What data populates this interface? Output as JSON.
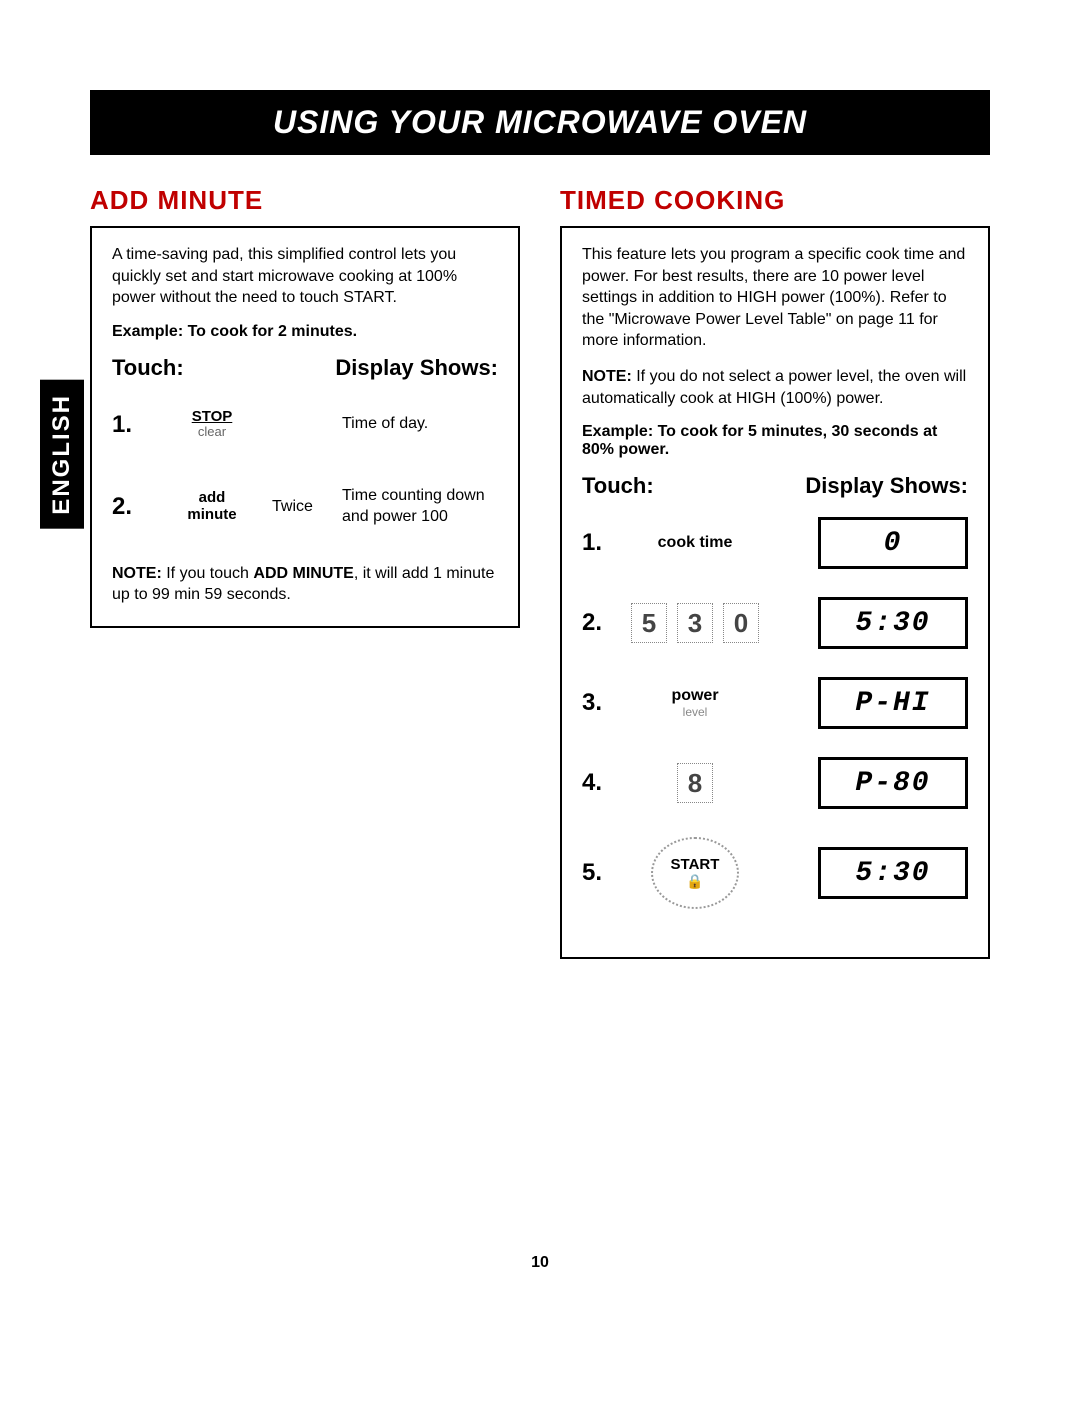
{
  "tab": "ENGLISH",
  "title": "USING YOUR MICROWAVE OVEN",
  "pageNumber": "10",
  "left": {
    "heading": "ADD MINUTE",
    "intro": "A time-saving pad, this simplified control lets you quickly set and start microwave cooking at 100% power without the need to touch START.",
    "exampleLabel": "Example: To cook for 2 minutes.",
    "touchHeader": "Touch:",
    "displayHeader": "Display Shows:",
    "steps": [
      {
        "num": "1.",
        "btnTop": "STOP",
        "btnBot": "clear",
        "mid": "",
        "result": "Time of day."
      },
      {
        "num": "2.",
        "btnTop": "add",
        "btnMid": "minute",
        "mid": "Twice",
        "result": "Time counting down and power 100"
      }
    ],
    "notePrefix": "NOTE:",
    "noteBody1": " If you touch ",
    "noteBold": "ADD MINUTE",
    "noteBody2": ", it will add 1 minute up to 99 min 59 seconds."
  },
  "right": {
    "heading": "TIMED COOKING",
    "intro": "This feature lets you program a specific cook time and power. For best results, there are 10 power level settings in addition to HIGH power (100%). Refer to the \"Microwave Power Level Table\" on page 11 for more information.",
    "notePrefix": "NOTE:",
    "noteBody": " If you do not select a power level, the oven will automatically cook at HIGH (100%) power.",
    "exampleLabel": "Example: To cook for 5 minutes, 30 seconds at 80% power.",
    "touchHeader": "Touch:",
    "displayHeader": "Display Shows:",
    "steps": [
      {
        "num": "1.",
        "type": "label",
        "label": "cook time",
        "sub": "",
        "display": "0"
      },
      {
        "num": "2.",
        "type": "keys",
        "keys": [
          "5",
          "3",
          "0"
        ],
        "display": "5:30"
      },
      {
        "num": "3.",
        "type": "label",
        "label": "power",
        "sub": "level",
        "display": "P-HI"
      },
      {
        "num": "4.",
        "type": "key",
        "key": "8",
        "display": "P-80"
      },
      {
        "num": "5.",
        "type": "start",
        "label": "START",
        "lock": "🔒",
        "display": "5:30"
      }
    ]
  }
}
